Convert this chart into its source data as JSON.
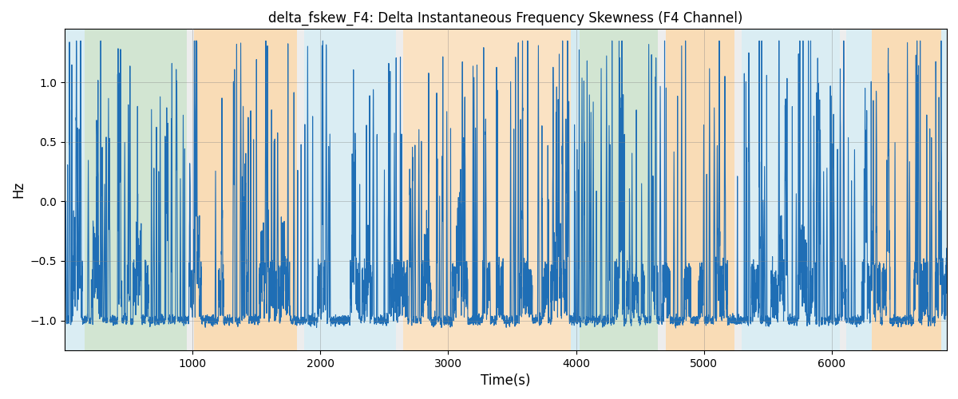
{
  "title": "delta_fskew_F4: Delta Instantaneous Frequency Skewness (F4 Channel)",
  "xlabel": "Time(s)",
  "ylabel": "Hz",
  "xlim": [
    0,
    6900
  ],
  "ylim": [
    -1.25,
    1.45
  ],
  "yticks": [
    -1.0,
    -0.5,
    0.0,
    0.5,
    1.0
  ],
  "xticks": [
    1000,
    2000,
    3000,
    4000,
    5000,
    6000
  ],
  "line_color": "#1f6eb5",
  "line_width": 0.8,
  "bg_regions": [
    {
      "start": 0,
      "end": 155,
      "color": "#add8e6",
      "alpha": 0.45
    },
    {
      "start": 155,
      "end": 955,
      "color": "#90c090",
      "alpha": 0.4
    },
    {
      "start": 955,
      "end": 1010,
      "color": "#cccccc",
      "alpha": 0.35
    },
    {
      "start": 1010,
      "end": 1820,
      "color": "#f5c07a",
      "alpha": 0.55
    },
    {
      "start": 1820,
      "end": 1875,
      "color": "#cccccc",
      "alpha": 0.35
    },
    {
      "start": 1875,
      "end": 2595,
      "color": "#add8e6",
      "alpha": 0.45
    },
    {
      "start": 2595,
      "end": 2650,
      "color": "#cccccc",
      "alpha": 0.35
    },
    {
      "start": 2650,
      "end": 3960,
      "color": "#f5c07a",
      "alpha": 0.45
    },
    {
      "start": 3960,
      "end": 4025,
      "color": "#add8e6",
      "alpha": 0.5
    },
    {
      "start": 4025,
      "end": 4640,
      "color": "#90c090",
      "alpha": 0.4
    },
    {
      "start": 4640,
      "end": 4700,
      "color": "#cccccc",
      "alpha": 0.35
    },
    {
      "start": 4700,
      "end": 5240,
      "color": "#f5c07a",
      "alpha": 0.55
    },
    {
      "start": 5240,
      "end": 5295,
      "color": "#cccccc",
      "alpha": 0.35
    },
    {
      "start": 5295,
      "end": 6060,
      "color": "#add8e6",
      "alpha": 0.45
    },
    {
      "start": 6060,
      "end": 6115,
      "color": "#cccccc",
      "alpha": 0.35
    },
    {
      "start": 6115,
      "end": 6310,
      "color": "#add8e6",
      "alpha": 0.45
    },
    {
      "start": 6310,
      "end": 6855,
      "color": "#f5c07a",
      "alpha": 0.55
    },
    {
      "start": 6855,
      "end": 6900,
      "color": "#add8e6",
      "alpha": 0.45
    }
  ],
  "seed": 42,
  "n_points": 6900
}
